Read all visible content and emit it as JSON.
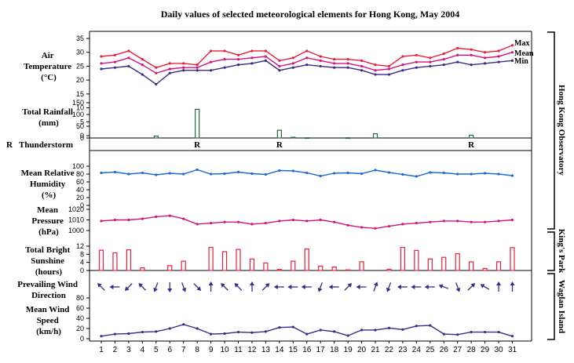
{
  "title": "Daily values of selected meteorological elements for Hong Kong, May 2004",
  "days": [
    "1",
    "2",
    "3",
    "4",
    "5",
    "6",
    "7",
    "8",
    "9",
    "10",
    "11",
    "12",
    "13",
    "14",
    "15",
    "16",
    "17",
    "18",
    "19",
    "20",
    "21",
    "22",
    "23",
    "24",
    "25",
    "26",
    "27",
    "28",
    "29",
    "30",
    "31"
  ],
  "colors": {
    "temp_max": "#e8203a",
    "temp_mean": "#d4147e",
    "temp_min": "#3a2a8c",
    "rain": "#1f6a3a",
    "humidity": "#1e6ad2",
    "pressure": "#d4147e",
    "sunshine": "#e8203a",
    "wind_dir": "#3a2a8c",
    "wind_speed": "#3a2a8c"
  },
  "stations": {
    "observatory": "Hong Kong Observatory",
    "kings_park": "King's Park",
    "waglan": "Waglan Island"
  },
  "chart_data": [
    {
      "type": "line",
      "id": "air_temperature",
      "ylabel": "Air Temperature (°C)",
      "ylabel_lines": [
        "Air",
        "Temperature",
        "(°C)"
      ],
      "ylim": [
        0,
        35
      ],
      "yticks": [
        "0",
        "5",
        "10",
        "15",
        "20",
        "25",
        "30",
        "35"
      ],
      "series": [
        {
          "name": "Max",
          "values": [
            28.5,
            29,
            30.5,
            27.5,
            24.5,
            26,
            26,
            25.5,
            30.5,
            30.5,
            29,
            30.5,
            30.5,
            27,
            28,
            30.5,
            28.5,
            27.5,
            27.5,
            27,
            25.5,
            25,
            28.5,
            29,
            28,
            29.5,
            31.5,
            31,
            30,
            30.5,
            32.5
          ]
        },
        {
          "name": "Mean",
          "values": [
            26,
            26.5,
            28,
            25.5,
            22.5,
            24,
            24.5,
            24.5,
            26.5,
            27.5,
            27.5,
            28,
            28.5,
            25,
            26,
            28,
            27,
            26,
            26,
            25,
            23.5,
            24,
            25.5,
            26.5,
            26.5,
            27.5,
            29,
            29,
            28,
            28.5,
            30
          ]
        },
        {
          "name": "Min",
          "values": [
            24,
            24.5,
            25,
            22,
            18.5,
            22.5,
            23.5,
            23.5,
            23.5,
            24.5,
            25.5,
            26,
            27,
            23.5,
            24.5,
            25.5,
            25,
            24.5,
            24.5,
            23.5,
            22,
            22,
            23.5,
            24.5,
            25,
            25.5,
            26.5,
            25.5,
            26,
            26.5,
            27
          ]
        }
      ]
    },
    {
      "type": "bar",
      "id": "total_rainfall",
      "ylabel": "Total Rainfall (mm)",
      "ylabel_lines": [
        "Total Rainfall",
        "(mm)"
      ],
      "ylim": [
        0,
        150
      ],
      "yticks": [
        "0",
        "50",
        "100",
        "150"
      ],
      "values": [
        0,
        0,
        0,
        0,
        8,
        0,
        0,
        122,
        0,
        0,
        0,
        0,
        0,
        33,
        3,
        1,
        0,
        0,
        1,
        0,
        18,
        0,
        0,
        0,
        0,
        0,
        0,
        12,
        0,
        0,
        0
      ]
    },
    {
      "type": "table",
      "id": "thunderstorm",
      "label": "Thunderstorm",
      "symbol": "R",
      "days": [
        "1",
        "8",
        "14",
        "28"
      ]
    },
    {
      "type": "line",
      "id": "mean_relative_humidity",
      "ylabel": "Mean Relative Humidity (%)",
      "ylabel_lines": [
        "Mean Relative",
        "Humidity",
        "(%)"
      ],
      "ylim": [
        0,
        100
      ],
      "yticks": [
        "0",
        "20",
        "40",
        "60",
        "80",
        "100"
      ],
      "values": [
        83,
        85,
        80,
        83,
        78,
        82,
        80,
        91,
        80,
        81,
        85,
        81,
        79,
        89,
        88,
        83,
        75,
        82,
        83,
        81,
        90,
        84,
        79,
        74,
        84,
        83,
        80,
        80,
        82,
        80,
        76
      ]
    },
    {
      "type": "line",
      "id": "mean_pressure",
      "ylabel": "Mean Pressure (hPa)",
      "ylabel_lines": [
        "Mean",
        "Pressure",
        "(hPa)"
      ],
      "ylim": [
        1000,
        1020
      ],
      "yticks": [
        "1000",
        "1010",
        "1020"
      ],
      "values": [
        1009,
        1010,
        1010,
        1011,
        1013,
        1014,
        1011,
        1006,
        1007,
        1008,
        1008,
        1006,
        1007,
        1009,
        1010,
        1009,
        1010,
        1008,
        1005,
        1003,
        1002,
        1004,
        1006,
        1007,
        1008,
        1009,
        1009,
        1008,
        1008,
        1009,
        1010
      ]
    },
    {
      "type": "bar",
      "id": "total_bright_sunshine",
      "ylabel": "Total Bright Sunshine (hours)",
      "ylabel_lines": [
        "Total Bright",
        "Sunshine",
        "(hours)"
      ],
      "ylim": [
        0,
        12
      ],
      "yticks": [
        "0",
        "4",
        "8",
        "12"
      ],
      "values": [
        10,
        8.7,
        10.2,
        1.3,
        0,
        2.4,
        4.6,
        0,
        11.4,
        9.3,
        10.4,
        5.7,
        3.7,
        0.5,
        4.6,
        10.6,
        2.2,
        1.7,
        0.3,
        4.3,
        0,
        0.6,
        11.4,
        9.9,
        5.7,
        6.5,
        8.3,
        4.3,
        1,
        4.3,
        11.3
      ]
    },
    {
      "type": "table",
      "id": "prevailing_wind_direction",
      "ylabel": "Prevailing Wind Direction",
      "ylabel_lines": [
        "Prevailing Wind",
        "Direction"
      ],
      "note": "arrow heading in degrees (0 = pointing up, clockwise)",
      "arrow_headings": [
        315,
        270,
        225,
        315,
        200,
        180,
        160,
        135,
        0,
        315,
        315,
        0,
        45,
        270,
        270,
        270,
        200,
        270,
        45,
        270,
        20,
        200,
        270,
        270,
        270,
        290,
        160,
        45,
        300,
        0,
        0
      ]
    },
    {
      "type": "line",
      "id": "mean_wind_speed",
      "ylabel": "Mean Wind Speed (km/h)",
      "ylabel_lines": [
        "Mean Wind",
        "Speed",
        "(km/h)"
      ],
      "ylim": [
        0,
        80
      ],
      "yticks": [
        "0",
        "20",
        "40",
        "60",
        "80"
      ],
      "values": [
        5,
        9,
        10,
        13,
        14,
        20,
        28,
        20,
        9,
        10,
        13,
        12,
        14,
        22,
        23,
        9,
        17,
        14,
        6,
        17,
        17,
        21,
        18,
        25,
        26,
        9,
        8,
        13,
        13,
        13,
        5
      ]
    }
  ]
}
